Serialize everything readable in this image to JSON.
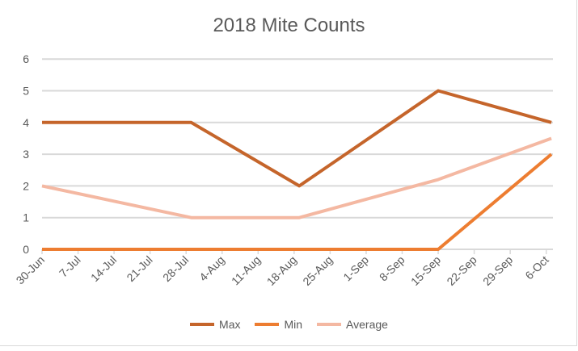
{
  "chart_data": {
    "type": "line",
    "title": "2018 Mite Counts",
    "xlabel": "",
    "ylabel": "",
    "x_ticks": [
      "30-Jun",
      "7-Jul",
      "14-Jul",
      "21-Jul",
      "28-Jul",
      "4-Aug",
      "11-Aug",
      "18-Aug",
      "25-Aug",
      "1-Sep",
      "8-Sep",
      "15-Sep",
      "22-Sep",
      "29-Sep",
      "6-Oct"
    ],
    "y_ticks": [
      "0",
      "1",
      "2",
      "3",
      "4",
      "5",
      "6"
    ],
    "ylim": [
      0,
      6
    ],
    "x": [
      "30-Jun",
      "29-Jul",
      "19-Aug",
      "15-Sep",
      "7-Oct"
    ],
    "series": [
      {
        "name": "Max",
        "color": "#C5652B",
        "values": [
          4,
          4,
          2,
          5,
          4
        ]
      },
      {
        "name": "Min",
        "color": "#ED7D31",
        "values": [
          0,
          0,
          0,
          0,
          3
        ]
      },
      {
        "name": "Average",
        "color": "#F4B8A2",
        "values": [
          2,
          1,
          1,
          2.2,
          3.5
        ]
      }
    ],
    "grid": true,
    "legend": "bottom"
  }
}
